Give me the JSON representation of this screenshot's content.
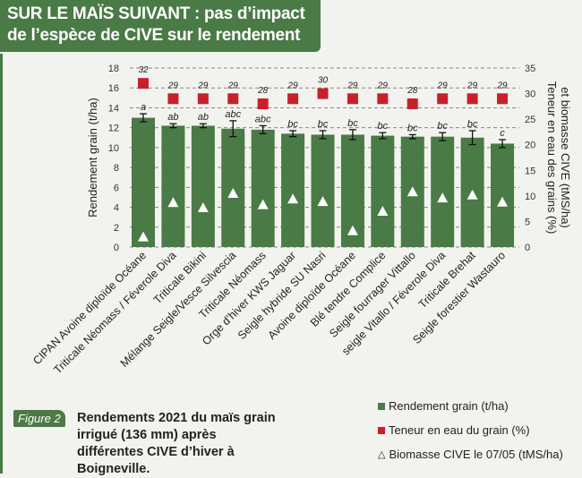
{
  "title": {
    "line1": "SUR LE MAÏS SUIVANT : pas d’impact",
    "line2": "de l’espèce de CIVE sur le rendement"
  },
  "figure": {
    "label": "Figure 2",
    "caption": "Rendements 2021 du maïs grain irrigué (136 mm) après différentes CIVE d’hiver à Boigneville."
  },
  "legend": [
    {
      "label": "Rendement grain (t/ha)",
      "color": "#4a7a45",
      "shape": "square"
    },
    {
      "label": "Teneur en eau du grain (%)",
      "color": "#c8202a",
      "shape": "square"
    },
    {
      "label": "Biomasse CIVE le 07/05 (tMS/ha)",
      "color": "#ffffff",
      "shape": "triangle"
    }
  ],
  "chart_data": {
    "type": "bar",
    "xlabel": "",
    "ylabel": "Rendement grain (t/ha)",
    "y2label_line1": "Teneur en eau des grains (%)",
    "y2label_line2": "et biomasse CIVE (tMS/ha)",
    "ylim": [
      0,
      18
    ],
    "yticks": [
      0,
      2,
      4,
      6,
      8,
      10,
      12,
      14,
      16,
      18
    ],
    "y2lim": [
      0,
      35
    ],
    "y2ticks": [
      0,
      5,
      10,
      15,
      20,
      25,
      30,
      35
    ],
    "grid": true,
    "categories": [
      "CIPAN Avoine diploïde Océane",
      "Triticale Néomass / Féverole Diva",
      "Triticale Bikini",
      "Mélange Seigle/Vesce Silvescia",
      "Triticale Néomass",
      "Orge d’hiver KWS Jaguar",
      "Seigle hybride SU Nasri",
      "Avoine diploïde Océane",
      "Blé tendre Complice",
      "Seigle fourrager Vittallo",
      "seigle Vitallo / Féverole Diva",
      "Triticale Brehat",
      "Seigle forestier Wastauro"
    ],
    "series": [
      {
        "name": "Rendement grain (t/ha)",
        "axis": "left",
        "type": "bar",
        "color": "#4a7a45",
        "values": [
          13.0,
          12.2,
          12.2,
          11.9,
          11.8,
          11.4,
          11.3,
          11.3,
          11.2,
          11.1,
          11.1,
          11.0,
          10.4
        ],
        "error": [
          0.4,
          0.2,
          0.2,
          0.8,
          0.4,
          0.3,
          0.4,
          0.5,
          0.3,
          0.2,
          0.4,
          0.7,
          0.4
        ],
        "letters": [
          "a",
          "ab",
          "ab",
          "abc",
          "abc",
          "bc",
          "bc",
          "bc",
          "bc",
          "bc",
          "bc",
          "bc",
          "c"
        ]
      },
      {
        "name": "Teneur en eau du grain (%)",
        "axis": "right",
        "type": "scatter",
        "color": "#c8202a",
        "values": [
          32,
          29,
          29,
          29,
          28,
          29,
          30,
          29,
          29,
          28,
          29,
          29,
          29
        ]
      },
      {
        "name": "Biomasse CIVE le 07/05 (tMS/ha)",
        "axis": "right",
        "type": "scatter",
        "color": "#ffffff",
        "values": [
          2.0,
          8.7,
          7.7,
          10.5,
          8.3,
          9.4,
          8.9,
          3.2,
          7.0,
          10.8,
          9.6,
          10.2,
          8.8
        ]
      }
    ]
  }
}
